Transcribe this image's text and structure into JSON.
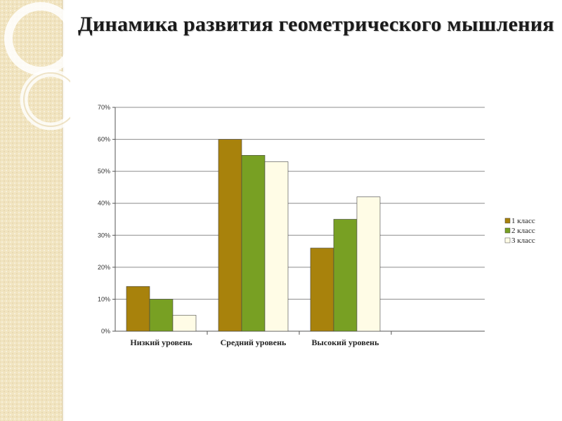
{
  "title": "Динамика развития геометрического мышления",
  "chart_data": {
    "type": "bar",
    "title": "Динамика развития геометрического мышления",
    "categories": [
      "Низкий уровень",
      "Средний уровень",
      "Высокий уровень"
    ],
    "series": [
      {
        "name": "1 класс",
        "color": "#a8820c",
        "values": [
          14,
          60,
          26
        ]
      },
      {
        "name": "2 класс",
        "color": "#78a023",
        "values": [
          10,
          55,
          35
        ]
      },
      {
        "name": "3 класс",
        "color": "#fffce6",
        "values": [
          5,
          53,
          42
        ]
      }
    ],
    "yticks": [
      "0%",
      "10%",
      "20%",
      "30%",
      "40%",
      "50%",
      "60%",
      "70%"
    ],
    "ylim": [
      0,
      70
    ],
    "grid": true,
    "legend_position": "right"
  }
}
